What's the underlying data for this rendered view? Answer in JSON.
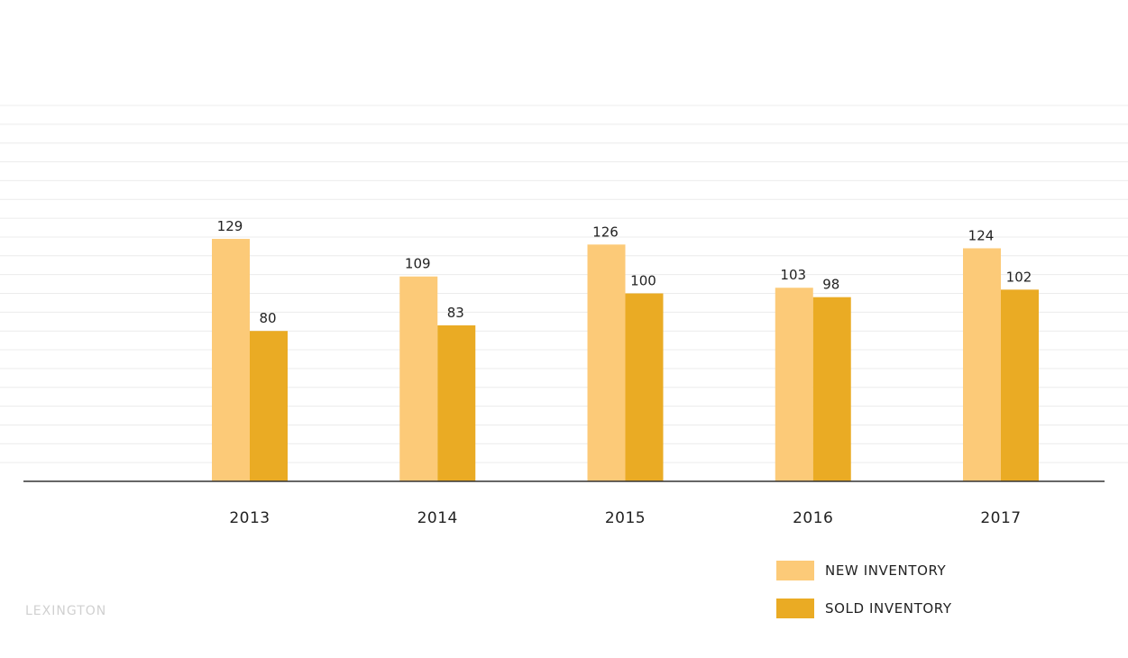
{
  "chart_data": {
    "type": "bar",
    "categories": [
      "2013",
      "2014",
      "2015",
      "2016",
      "2017"
    ],
    "series": [
      {
        "name": "NEW INVENTORY",
        "values": [
          129,
          109,
          126,
          103,
          124
        ],
        "color": "#fcca78"
      },
      {
        "name": "SOLD INVENTORY",
        "values": [
          80,
          83,
          100,
          98,
          102
        ],
        "color": "#eaab24"
      }
    ],
    "ylim": [
      0,
      200
    ],
    "grid": true,
    "legend_position": "bottom-right"
  },
  "legend": {
    "items": [
      {
        "label": "NEW INVENTORY",
        "color": "#fcca78"
      },
      {
        "label": "SOLD INVENTORY",
        "color": "#eaab24"
      }
    ]
  },
  "watermark": {
    "text": "LEXINGTON"
  }
}
